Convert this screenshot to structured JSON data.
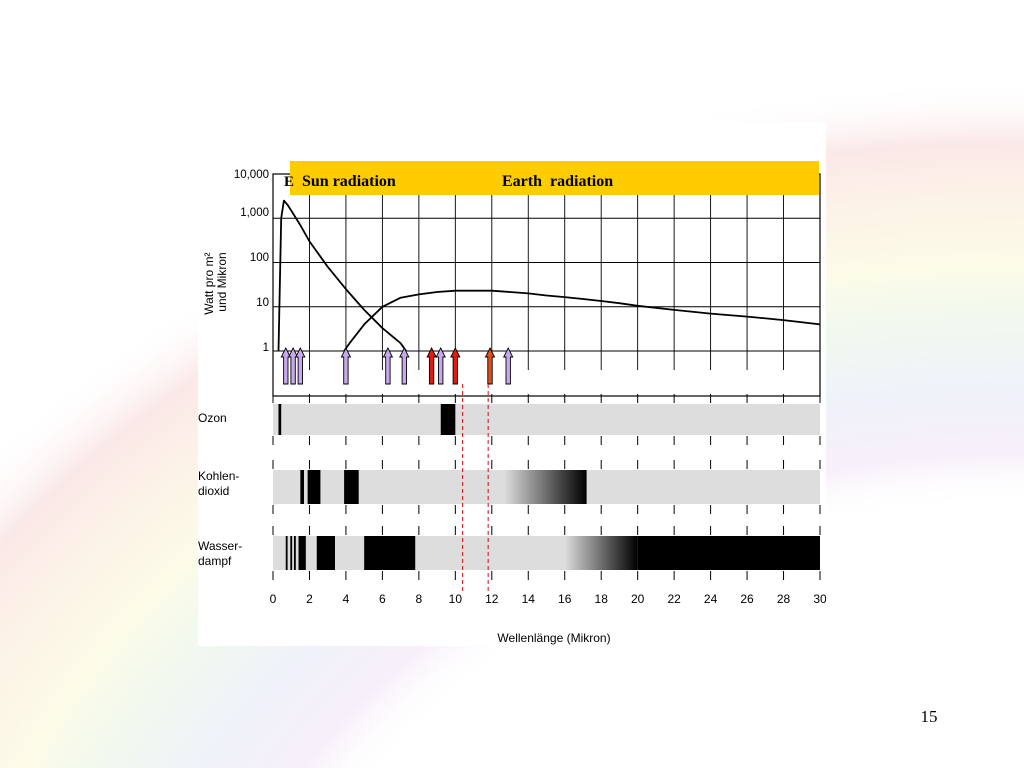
{
  "slide": {
    "page_number": "15"
  },
  "banner": {
    "label_left": "Sun radiation",
    "label_right": "Earth  radiation",
    "color": "#ffcc00",
    "clipped_glyph": "E"
  },
  "colors": {
    "sun_arrow": "#c8a8ec",
    "earth_arrow": "#e21a10",
    "earth_arrow_alt": "#e0501a",
    "absorption_band": "#dddddd",
    "absorption_black": "#000000",
    "dashed_line": "#d01010"
  },
  "chart_data": [
    {
      "type": "line",
      "title": "",
      "ylabel": "Watt pro m² und Mikron",
      "xlabel": "",
      "yscale": "log",
      "ylim": [
        1,
        10000
      ],
      "xlim": [
        0,
        30
      ],
      "y_ticks": [
        "10,000",
        "1,000",
        "100",
        "10",
        "1"
      ],
      "grid": true,
      "series": [
        {
          "name": "Sun radiation",
          "x": [
            0.3,
            0.45,
            0.6,
            0.8,
            1.0,
            1.5,
            2.0,
            3.0,
            4.0,
            5.0,
            6.0,
            7.0,
            7.3
          ],
          "y": [
            1,
            1000,
            2500,
            2000,
            1500,
            700,
            300,
            80,
            25,
            8.5,
            3.3,
            1.5,
            1.0
          ]
        },
        {
          "name": "Earth radiation",
          "x": [
            3.9,
            4.2,
            5.0,
            6.0,
            7.0,
            8.0,
            9.0,
            10.0,
            11.0,
            12.0,
            13.0,
            14.0,
            15.0,
            16.0,
            17.0,
            18.0,
            19.0,
            20.0,
            22.0,
            24.0,
            26.0,
            28.0,
            30.0
          ],
          "y": [
            1,
            1.5,
            4.0,
            10,
            16,
            19,
            21.5,
            23,
            23,
            23,
            21.5,
            20,
            18,
            16.5,
            15,
            13.5,
            12,
            10.5,
            8.5,
            7,
            6,
            5,
            4
          ]
        }
      ],
      "arrows": [
        {
          "x": 0.7,
          "color": "sun"
        },
        {
          "x": 1.1,
          "color": "sun"
        },
        {
          "x": 1.5,
          "color": "sun"
        },
        {
          "x": 4.0,
          "color": "sun"
        },
        {
          "x": 6.3,
          "color": "sun"
        },
        {
          "x": 7.2,
          "color": "sun"
        },
        {
          "x": 8.7,
          "color": "earth"
        },
        {
          "x": 9.2,
          "color": "sun"
        },
        {
          "x": 10.0,
          "color": "earth"
        },
        {
          "x": 11.9,
          "color": "earth_alt"
        },
        {
          "x": 12.9,
          "color": "sun"
        }
      ]
    },
    {
      "type": "heatmap",
      "xlabel": "Wellenlänge (Mikron)",
      "xlim": [
        0,
        30
      ],
      "x_ticks": [
        0,
        2,
        4,
        6,
        8,
        10,
        12,
        14,
        16,
        18,
        20,
        22,
        24,
        26,
        28,
        30
      ],
      "dashed_lines_x": [
        10.4,
        11.8
      ],
      "series": [
        {
          "name": "Ozon",
          "label_lines": [
            "Ozon"
          ],
          "bands": [
            {
              "from": 0.3,
              "to": 0.45,
              "ramp": "solid"
            },
            {
              "from": 9.2,
              "to": 10.0,
              "ramp": "solid"
            }
          ]
        },
        {
          "name": "Kohlendioxid",
          "label_lines": [
            "Kohlen-",
            "dioxid"
          ],
          "bands": [
            {
              "from": 1.5,
              "to": 1.7,
              "ramp": "solid"
            },
            {
              "from": 1.9,
              "to": 2.6,
              "ramp": "solid"
            },
            {
              "from": 3.9,
              "to": 4.7,
              "ramp": "solid"
            },
            {
              "from": 12.7,
              "to": 17.2,
              "ramp": "in"
            }
          ]
        },
        {
          "name": "Wasserdampf",
          "label_lines": [
            "Wasser-",
            "dampf"
          ],
          "bands": [
            {
              "from": 0.7,
              "to": 0.8,
              "ramp": "solid"
            },
            {
              "from": 0.95,
              "to": 1.05,
              "ramp": "solid"
            },
            {
              "from": 1.15,
              "to": 1.25,
              "ramp": "solid"
            },
            {
              "from": 1.4,
              "to": 1.8,
              "ramp": "solid"
            },
            {
              "from": 2.4,
              "to": 3.4,
              "ramp": "solid"
            },
            {
              "from": 5.0,
              "to": 7.8,
              "ramp": "solid"
            },
            {
              "from": 16.0,
              "to": 20.0,
              "ramp": "in"
            },
            {
              "from": 20.0,
              "to": 30.0,
              "ramp": "solid"
            }
          ]
        }
      ]
    }
  ]
}
